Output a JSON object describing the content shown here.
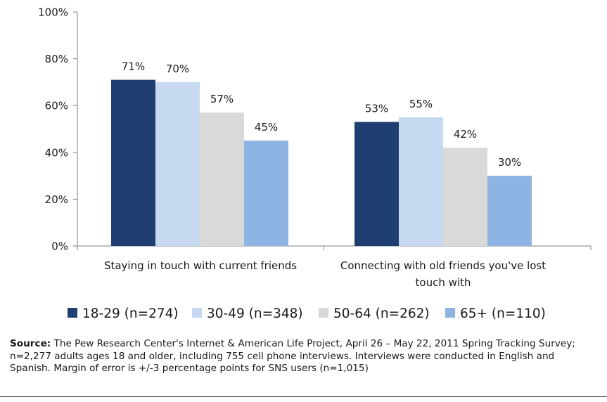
{
  "colors": {
    "18-29": "#1f3f73",
    "30-49": "#c6d9f1",
    "50-64": "#d9d9d9",
    "65+": "#8db4e2"
  },
  "chart_data": {
    "type": "bar",
    "title": "",
    "xlabel": "",
    "ylabel": "",
    "ylim": [
      0,
      100
    ],
    "yticks": [
      "0%",
      "20%",
      "40%",
      "60%",
      "80%",
      "100%"
    ],
    "grid": false,
    "legend_position": "bottom",
    "categories": [
      [
        "Staying in touch with current friends"
      ],
      [
        "Connecting with old friends you've lost",
        "touch with"
      ]
    ],
    "series": [
      {
        "name": "18-29 (n=274)",
        "key": "18-29",
        "values": [
          71,
          53
        ],
        "labels": [
          "71%",
          "53%"
        ]
      },
      {
        "name": "30-49 (n=348)",
        "key": "30-49",
        "values": [
          70,
          55
        ],
        "labels": [
          "70%",
          "55%"
        ]
      },
      {
        "name": "50-64 (n=262)",
        "key": "50-64",
        "values": [
          57,
          42
        ],
        "labels": [
          "57%",
          "42%"
        ]
      },
      {
        "name": "65+ (n=110)",
        "key": "65+",
        "values": [
          45,
          30
        ],
        "labels": [
          "45%",
          "30%"
        ]
      }
    ]
  },
  "source": {
    "label": "Source:",
    "text": " The Pew Research Center's Internet & American Life Project, April 26 – May 22, 2011 Spring Tracking Survey; n=2,277 adults ages 18 and older, including 755 cell phone interviews. Interviews were conducted in English and Spanish. Margin of error is +/-3 percentage points for SNS users (n=1,015)"
  }
}
